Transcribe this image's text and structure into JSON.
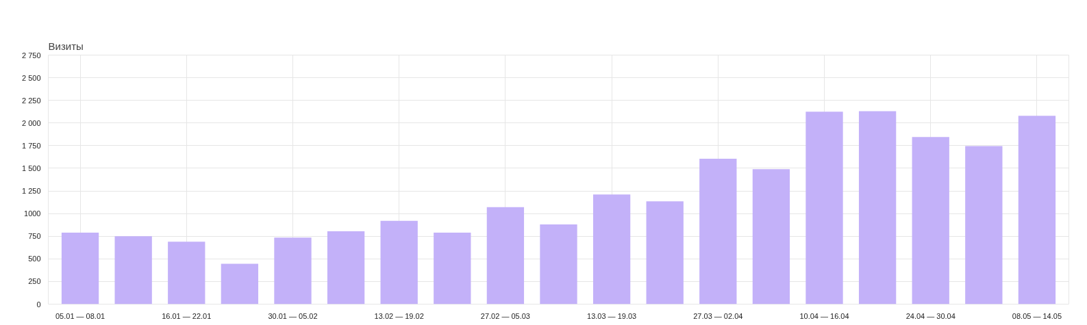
{
  "chart_data": {
    "type": "bar",
    "title": "Визиты",
    "categories": [
      "05.01 — 08.01",
      null,
      "16.01 — 22.01",
      null,
      "30.01 — 05.02",
      null,
      "13.02 — 19.02",
      null,
      "27.02 — 05.03",
      null,
      "13.03 — 19.03",
      null,
      "27.03 — 02.04",
      null,
      "10.04 — 16.04",
      null,
      "24.04 — 30.04",
      null,
      "08.05 — 14.05"
    ],
    "values": [
      790,
      750,
      690,
      445,
      735,
      805,
      920,
      790,
      1070,
      880,
      1210,
      1135,
      1605,
      1490,
      2125,
      2130,
      1845,
      1745,
      2080
    ],
    "color": "#c3b1f9",
    "ylim": [
      0,
      2750
    ],
    "yticks": [
      0,
      250,
      500,
      750,
      1000,
      {
        "value": 1250,
        "label": "1 250"
      },
      {
        "value": 1500,
        "label": "1 500"
      },
      {
        "value": 1750,
        "label": "1 750"
      },
      {
        "value": 2000,
        "label": "2 000"
      },
      {
        "value": 2250,
        "label": "2 250"
      },
      {
        "value": 2500,
        "label": "2 500"
      },
      {
        "value": 2750,
        "label": "2 750"
      }
    ],
    "grid": true
  }
}
